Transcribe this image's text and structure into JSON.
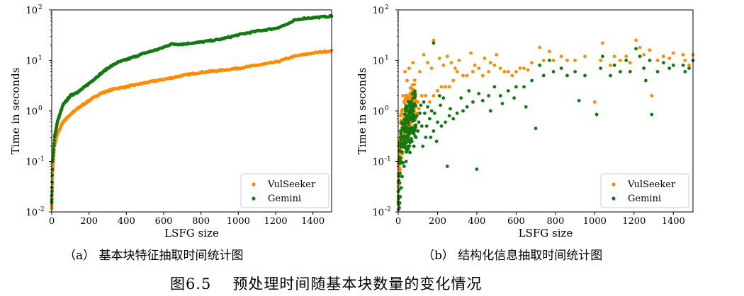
{
  "figure": {
    "caption_number": "图6.5",
    "caption_text": "预处理时间随基本块数量的变化情况"
  },
  "chart_data": [
    {
      "id": "a",
      "type": "scatter",
      "caption": "（a） 基本块特征抽取时间统计图",
      "xlabel": "LSFG size",
      "ylabel": "Time in seconds",
      "xlim": [
        0,
        1500
      ],
      "ylim": [
        0.01,
        100
      ],
      "yscale": "log",
      "x_ticks": [
        "0",
        "200",
        "400",
        "600",
        "800",
        "1000",
        "1200",
        "1400"
      ],
      "x_tick_values": [
        0,
        200,
        400,
        600,
        800,
        1000,
        1200,
        1400
      ],
      "y_ticks": [
        {
          "value": 0.01,
          "base": "10",
          "exp": "-2"
        },
        {
          "value": 0.1,
          "base": "10",
          "exp": "-1"
        },
        {
          "value": 1,
          "base": "10",
          "exp": "0"
        },
        {
          "value": 10,
          "base": "10",
          "exp": "1"
        },
        {
          "value": 100,
          "base": "10",
          "exp": "2"
        }
      ],
      "grid": false,
      "legend_position": "bottom-right",
      "series": [
        {
          "name": "VulSeeker",
          "color": "#ff8c00",
          "curve": [
            [
              0,
              0.012
            ],
            [
              5,
              0.06
            ],
            [
              15,
              0.2
            ],
            [
              30,
              0.35
            ],
            [
              60,
              0.6
            ],
            [
              100,
              0.85
            ],
            [
              150,
              1.2
            ],
            [
              200,
              1.6
            ],
            [
              260,
              2.2
            ],
            [
              330,
              2.7
            ],
            [
              400,
              3.0
            ],
            [
              500,
              3.6
            ],
            [
              600,
              4.2
            ],
            [
              700,
              5.0
            ],
            [
              800,
              5.8
            ],
            [
              900,
              6.3
            ],
            [
              1000,
              7.0
            ],
            [
              1100,
              8.0
            ],
            [
              1200,
              9.2
            ],
            [
              1300,
              12.0
            ],
            [
              1400,
              14.0
            ],
            [
              1500,
              15.5
            ]
          ]
        },
        {
          "name": "Gemini",
          "color": "#117a11",
          "curve": [
            [
              0,
              0.015
            ],
            [
              5,
              0.1
            ],
            [
              15,
              0.3
            ],
            [
              30,
              0.6
            ],
            [
              60,
              1.3
            ],
            [
              100,
              2.0
            ],
            [
              150,
              2.5
            ],
            [
              200,
              3.5
            ],
            [
              250,
              5.0
            ],
            [
              300,
              7.0
            ],
            [
              350,
              9.0
            ],
            [
              420,
              11.0
            ],
            [
              500,
              14.0
            ],
            [
              580,
              17.0
            ],
            [
              640,
              21.0
            ],
            [
              700,
              21.0
            ],
            [
              800,
              23.0
            ],
            [
              900,
              26.0
            ],
            [
              1000,
              32.0
            ],
            [
              1100,
              38.0
            ],
            [
              1200,
              43.0
            ],
            [
              1280,
              55.0
            ],
            [
              1300,
              62.0
            ],
            [
              1350,
              68.0
            ],
            [
              1400,
              70.0
            ],
            [
              1500,
              75.0
            ]
          ]
        }
      ]
    },
    {
      "id": "b",
      "type": "scatter",
      "caption": "（b） 结构化信息抽取时间统计图",
      "xlabel": "LSFG size",
      "ylabel": "Time in seconds",
      "xlim": [
        0,
        1500
      ],
      "ylim": [
        0.01,
        100
      ],
      "yscale": "log",
      "x_ticks": [
        "0",
        "200",
        "400",
        "600",
        "800",
        "1000",
        "1200",
        "1400"
      ],
      "x_tick_values": [
        0,
        200,
        400,
        600,
        800,
        1000,
        1200,
        1400
      ],
      "y_ticks": [
        {
          "value": 0.01,
          "base": "10",
          "exp": "-2"
        },
        {
          "value": 0.1,
          "base": "10",
          "exp": "-1"
        },
        {
          "value": 1,
          "base": "10",
          "exp": "0"
        },
        {
          "value": 10,
          "base": "10",
          "exp": "1"
        },
        {
          "value": 100,
          "base": "10",
          "exp": "2"
        }
      ],
      "grid": false,
      "legend_position": "bottom-right",
      "series": [
        {
          "name": "VulSeeker",
          "color": "#ff8c00",
          "points": [
            [
              180,
              25
            ],
            [
              1040,
              22
            ],
            [
              1210,
              25
            ],
            [
              1230,
              18
            ],
            [
              1280,
              16
            ],
            [
              770,
              15
            ],
            [
              720,
              18
            ],
            [
              1400,
              14
            ],
            [
              1450,
              13
            ],
            [
              1500,
              13
            ],
            [
              1100,
              12
            ],
            [
              1160,
              12
            ],
            [
              1250,
              13
            ],
            [
              1350,
              12
            ],
            [
              900,
              10
            ],
            [
              950,
              12
            ],
            [
              1030,
              10
            ],
            [
              860,
              10
            ],
            [
              830,
              12
            ],
            [
              790,
              10
            ],
            [
              740,
              10
            ],
            [
              680,
              9
            ],
            [
              640,
              7
            ],
            [
              600,
              6
            ],
            [
              560,
              6
            ],
            [
              520,
              7
            ],
            [
              490,
              8
            ],
            [
              460,
              6
            ],
            [
              430,
              5
            ],
            [
              410,
              7
            ],
            [
              380,
              6
            ],
            [
              350,
              5
            ],
            [
              330,
              5
            ],
            [
              300,
              6
            ],
            [
              280,
              4
            ],
            [
              260,
              3
            ],
            [
              240,
              3
            ],
            [
              220,
              3
            ],
            [
              200,
              2.5
            ],
            [
              180,
              2
            ],
            [
              160,
              1.5
            ],
            [
              140,
              2
            ],
            [
              120,
              2
            ],
            [
              100,
              1.5
            ],
            [
              90,
              1.2
            ],
            [
              80,
              1.0
            ],
            [
              70,
              1.3
            ],
            [
              60,
              0.9
            ],
            [
              50,
              1.1
            ],
            [
              40,
              1.2
            ],
            [
              30,
              1.5
            ],
            [
              20,
              0.6
            ],
            [
              15,
              0.4
            ],
            [
              10,
              0.25
            ],
            [
              8,
              0.15
            ],
            [
              5,
              0.1
            ],
            [
              3,
              0.05
            ],
            [
              2,
              0.02
            ],
            [
              25,
              2.0
            ],
            [
              35,
              6.0
            ],
            [
              45,
              4.0
            ],
            [
              55,
              7.0
            ],
            [
              75,
              9.0
            ],
            [
              110,
              6.0
            ],
            [
              130,
              13.0
            ],
            [
              150,
              9.0
            ],
            [
              170,
              7.0
            ],
            [
              210,
              11.0
            ],
            [
              230,
              8.0
            ],
            [
              250,
              12.0
            ],
            [
              270,
              9.0
            ],
            [
              290,
              7.0
            ],
            [
              310,
              10.0
            ],
            [
              370,
              14.0
            ],
            [
              390,
              8.0
            ],
            [
              440,
              11.0
            ],
            [
              470,
              9.0
            ],
            [
              500,
              13.0
            ],
            [
              540,
              6.0
            ],
            [
              580,
              5.0
            ],
            [
              620,
              7.0
            ],
            [
              660,
              6.5
            ],
            [
              1000,
              1.5
            ],
            [
              1290,
              2.0
            ],
            [
              1460,
              10.0
            ],
            [
              1480,
              8.0
            ],
            [
              1380,
              11.0
            ],
            [
              1320,
              10.0
            ],
            [
              1180,
              9.0
            ],
            [
              1130,
              10.0
            ],
            [
              1080,
              8.0
            ],
            [
              12,
              0.8
            ],
            [
              18,
              1.0
            ],
            [
              28,
              0.7
            ],
            [
              38,
              0.9
            ],
            [
              48,
              0.5
            ],
            [
              58,
              1.4
            ],
            [
              68,
              0.6
            ],
            [
              85,
              1.8
            ],
            [
              95,
              0.9
            ],
            [
              105,
              1.1
            ]
          ]
        },
        {
          "name": "Gemini",
          "color": "#117a11",
          "points": [
            [
              180,
              22
            ],
            [
              1040,
              12
            ],
            [
              1210,
              17
            ],
            [
              1230,
              12
            ],
            [
              1280,
              10
            ],
            [
              770,
              10
            ],
            [
              720,
              8
            ],
            [
              1400,
              8
            ],
            [
              1450,
              8
            ],
            [
              1500,
              10
            ],
            [
              1100,
              8
            ],
            [
              1160,
              10
            ],
            [
              1250,
              7
            ],
            [
              1350,
              9
            ],
            [
              900,
              6
            ],
            [
              950,
              5
            ],
            [
              1030,
              7
            ],
            [
              860,
              5
            ],
            [
              830,
              7
            ],
            [
              790,
              6
            ],
            [
              740,
              5
            ],
            [
              680,
              4
            ],
            [
              640,
              3
            ],
            [
              600,
              3
            ],
            [
              560,
              2.5
            ],
            [
              520,
              2
            ],
            [
              490,
              3
            ],
            [
              460,
              2
            ],
            [
              430,
              1.6
            ],
            [
              410,
              2.2
            ],
            [
              380,
              1.5
            ],
            [
              350,
              1.2
            ],
            [
              330,
              1.0
            ],
            [
              300,
              0.9
            ],
            [
              280,
              0.7
            ],
            [
              260,
              0.8
            ],
            [
              240,
              0.6
            ],
            [
              220,
              0.5
            ],
            [
              200,
              0.6
            ],
            [
              180,
              0.4
            ],
            [
              160,
              0.7
            ],
            [
              140,
              0.3
            ],
            [
              120,
              0.5
            ],
            [
              100,
              0.4
            ],
            [
              90,
              0.3
            ],
            [
              80,
              0.2
            ],
            [
              70,
              0.25
            ],
            [
              60,
              0.15
            ],
            [
              50,
              0.2
            ],
            [
              40,
              0.1
            ],
            [
              30,
              0.08
            ],
            [
              20,
              0.05
            ],
            [
              15,
              0.03
            ],
            [
              10,
              0.02
            ],
            [
              8,
              0.015
            ],
            [
              5,
              0.012
            ],
            [
              3,
              0.02
            ],
            [
              25,
              0.3
            ],
            [
              35,
              0.5
            ],
            [
              45,
              0.8
            ],
            [
              55,
              1.0
            ],
            [
              75,
              1.2
            ],
            [
              110,
              0.9
            ],
            [
              130,
              1.5
            ],
            [
              150,
              1.2
            ],
            [
              170,
              1.0
            ],
            [
              210,
              2.0
            ],
            [
              230,
              1.8
            ],
            [
              250,
              0.08
            ],
            [
              400,
              0.07
            ],
            [
              700,
              0.45
            ],
            [
              920,
              1.6
            ],
            [
              1010,
              0.85
            ],
            [
              1290,
              0.85
            ],
            [
              1260,
              4.0
            ],
            [
              1460,
              6.0
            ],
            [
              1480,
              7.0
            ],
            [
              1380,
              7.0
            ],
            [
              1320,
              6.0
            ],
            [
              1180,
              6.0
            ],
            [
              1130,
              6.0
            ],
            [
              1080,
              5.0
            ],
            [
              12,
              0.4
            ],
            [
              18,
              0.6
            ],
            [
              28,
              0.2
            ],
            [
              38,
              0.3
            ],
            [
              48,
              0.6
            ],
            [
              58,
              0.4
            ],
            [
              68,
              0.7
            ],
            [
              85,
              0.5
            ],
            [
              95,
              0.8
            ],
            [
              105,
              0.6
            ],
            [
              115,
              1.3
            ],
            [
              125,
              0.2
            ],
            [
              135,
              0.9
            ],
            [
              145,
              0.5
            ],
            [
              165,
              0.3
            ],
            [
              185,
              0.9
            ],
            [
              195,
              0.25
            ],
            [
              215,
              1.3
            ],
            [
              265,
              1.1
            ],
            [
              320,
              1.8
            ],
            [
              360,
              2.5
            ],
            [
              470,
              1.0
            ],
            [
              530,
              1.4
            ],
            [
              590,
              1.8
            ],
            [
              650,
              1.2
            ]
          ]
        }
      ]
    }
  ]
}
